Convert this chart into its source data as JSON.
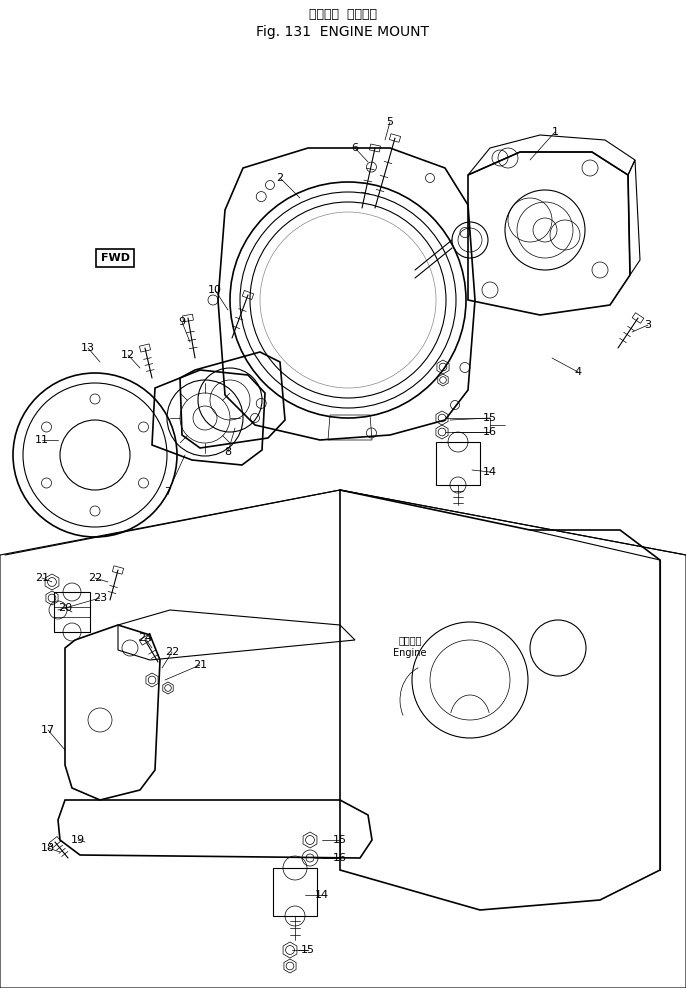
{
  "title_jp": "エンジン  マウント",
  "title_en": "Fig. 131  ENGINE MOUNT",
  "background_color": "#ffffff",
  "line_color": "#000000",
  "figsize": [
    6.86,
    9.88
  ],
  "dpi": 100
}
